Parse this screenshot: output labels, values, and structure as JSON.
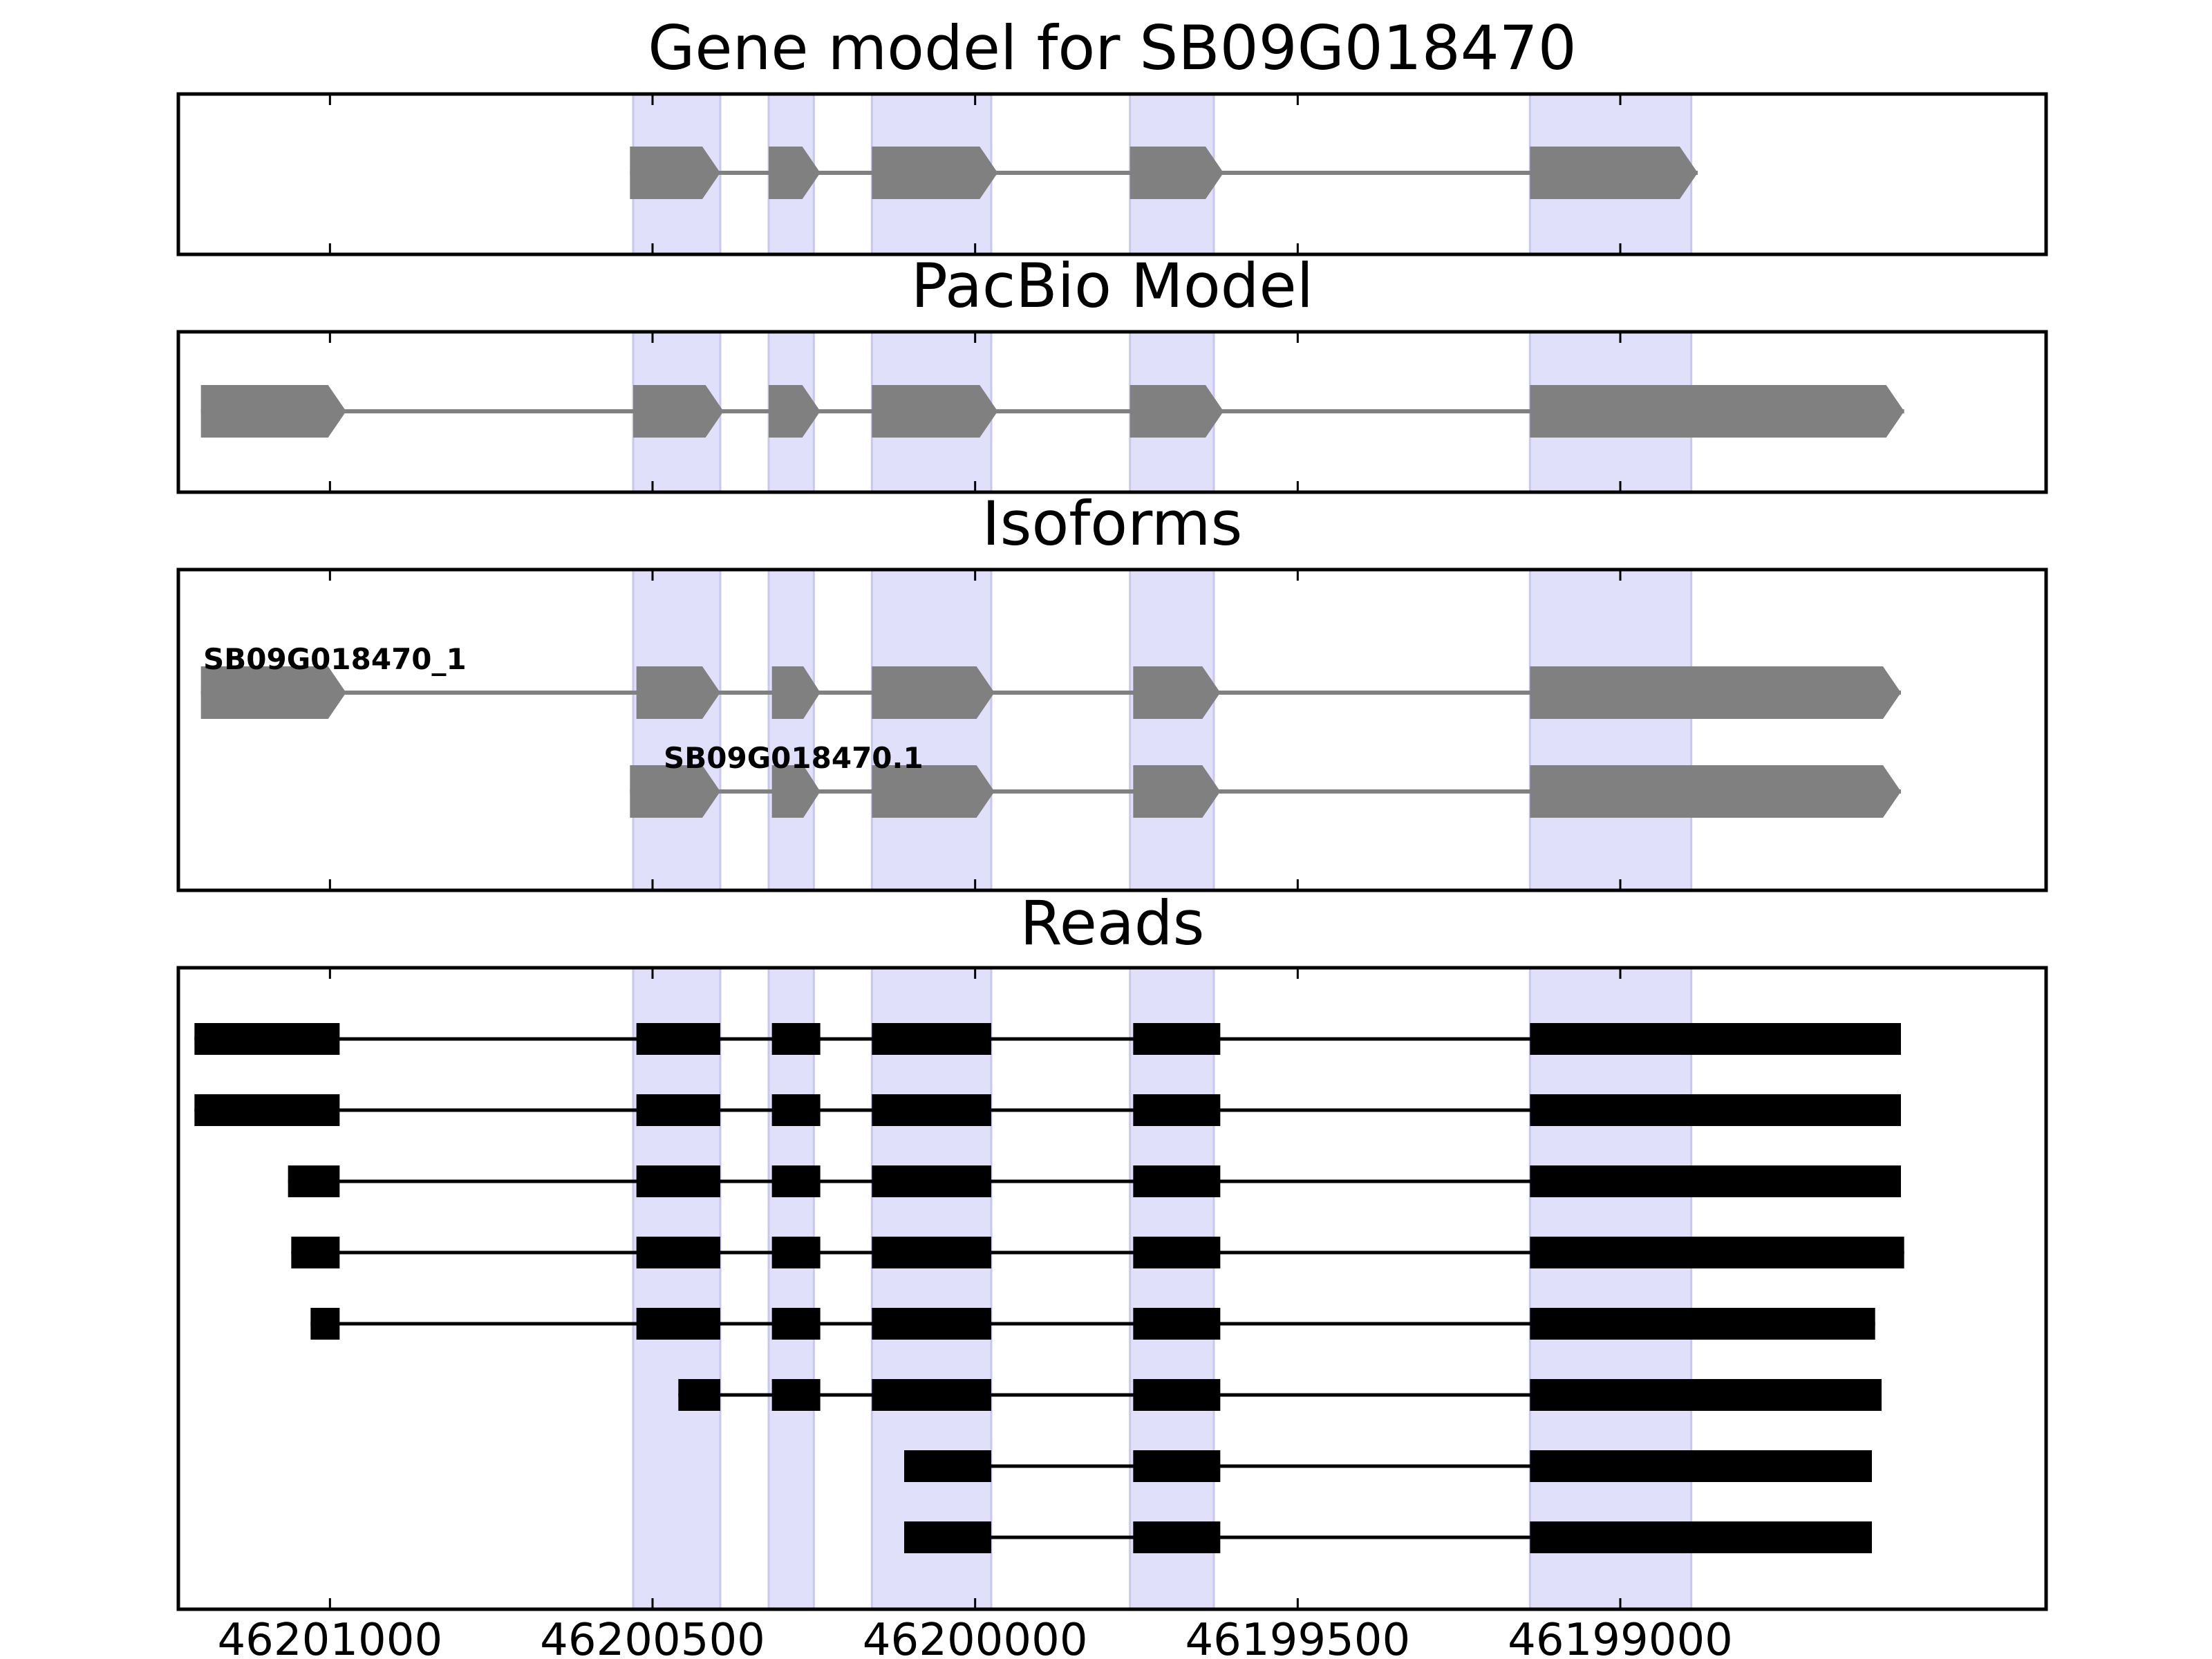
{
  "chart_data": {
    "type": "gene-structure",
    "strand": "minus",
    "xlim": [
      46201235,
      46198340
    ],
    "x_ticks": [
      46201000,
      46200500,
      46200000,
      46199500,
      46199000
    ],
    "x_tick_labels": [
      "46201000",
      "46200500",
      "46200000",
      "46199500",
      "46199000"
    ],
    "highlight_regions": [
      [
        46200530,
        46200395
      ],
      [
        46200320,
        46200250
      ],
      [
        46200160,
        46199975
      ],
      [
        46199760,
        46199630
      ],
      [
        46199140,
        46198890
      ]
    ],
    "highlight_color": "#e0e0fa",
    "feature_color": "#808080",
    "read_color": "#000000",
    "panels": [
      {
        "title": "Gene model for SB09G018470",
        "kind": "model",
        "tracks": [
          {
            "label": "",
            "exons": [
              [
                46200535,
                46200395
              ],
              [
                46200320,
                46200240
              ],
              [
                46200160,
                46199965
              ],
              [
                46199760,
                46199615
              ],
              [
                46199140,
                46198880
              ]
            ]
          }
        ]
      },
      {
        "title": "PacBio Model",
        "kind": "model",
        "tracks": [
          {
            "label": "",
            "exons": [
              [
                46201200,
                46200975
              ],
              [
                46200530,
                46200390
              ],
              [
                46200320,
                46200240
              ],
              [
                46200160,
                46199965
              ],
              [
                46199760,
                46199615
              ],
              [
                46199140,
                46198560
              ]
            ]
          }
        ]
      },
      {
        "title": "Isoforms",
        "kind": "model",
        "tracks": [
          {
            "label": "SB09G018470_1",
            "exons": [
              [
                46201200,
                46200975
              ],
              [
                46200525,
                46200395
              ],
              [
                46200315,
                46200240
              ],
              [
                46200160,
                46199970
              ],
              [
                46199755,
                46199620
              ],
              [
                46199140,
                46198565
              ]
            ]
          },
          {
            "label": "SB09G018470.1",
            "exons": [
              [
                46200535,
                46200395
              ],
              [
                46200315,
                46200240
              ],
              [
                46200160,
                46199970
              ],
              [
                46199755,
                46199620
              ],
              [
                46199140,
                46198565
              ]
            ]
          }
        ]
      },
      {
        "title": "Reads",
        "kind": "reads",
        "tracks": [
          {
            "exons": [
              [
                46201210,
                46200985
              ],
              [
                46200525,
                46200395
              ],
              [
                46200315,
                46200240
              ],
              [
                46200160,
                46199975
              ],
              [
                46199755,
                46199620
              ],
              [
                46199140,
                46198565
              ]
            ]
          },
          {
            "exons": [
              [
                46201210,
                46200985
              ],
              [
                46200525,
                46200395
              ],
              [
                46200315,
                46200240
              ],
              [
                46200160,
                46199975
              ],
              [
                46199755,
                46199620
              ],
              [
                46199140,
                46198565
              ]
            ]
          },
          {
            "exons": [
              [
                46201065,
                46200985
              ],
              [
                46200525,
                46200395
              ],
              [
                46200315,
                46200240
              ],
              [
                46200160,
                46199975
              ],
              [
                46199755,
                46199620
              ],
              [
                46199140,
                46198565
              ]
            ]
          },
          {
            "exons": [
              [
                46201060,
                46200985
              ],
              [
                46200525,
                46200395
              ],
              [
                46200315,
                46200240
              ],
              [
                46200160,
                46199975
              ],
              [
                46199755,
                46199620
              ],
              [
                46199140,
                46198560
              ]
            ]
          },
          {
            "exons": [
              [
                46201030,
                46200985
              ],
              [
                46200525,
                46200395
              ],
              [
                46200315,
                46200240
              ],
              [
                46200160,
                46199975
              ],
              [
                46199755,
                46199620
              ],
              [
                46199140,
                46198605
              ]
            ]
          },
          {
            "exons": [
              [
                46200460,
                46200395
              ],
              [
                46200315,
                46200240
              ],
              [
                46200160,
                46199975
              ],
              [
                46199755,
                46199620
              ],
              [
                46199140,
                46198595
              ]
            ]
          },
          {
            "exons": [
              [
                46200110,
                46199975
              ],
              [
                46199755,
                46199620
              ],
              [
                46199140,
                46198610
              ]
            ]
          },
          {
            "exons": [
              [
                46200110,
                46199975
              ],
              [
                46199755,
                46199620
              ],
              [
                46199140,
                46198610
              ]
            ]
          }
        ]
      }
    ]
  }
}
